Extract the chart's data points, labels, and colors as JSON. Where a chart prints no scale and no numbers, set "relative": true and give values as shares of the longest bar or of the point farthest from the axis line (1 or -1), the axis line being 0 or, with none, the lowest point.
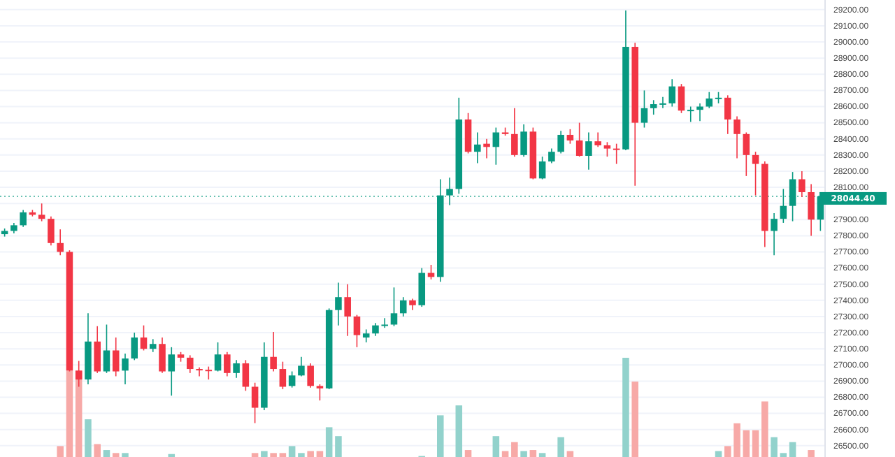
{
  "chart_data": [
    {
      "type": "candlestick",
      "categories": [
        null,
        null,
        null,
        null,
        null,
        null,
        null,
        null,
        null,
        null,
        null,
        null,
        null,
        null,
        null,
        null,
        null,
        null,
        null,
        null,
        null,
        null,
        null,
        null,
        null,
        null,
        null,
        null,
        null,
        null,
        null,
        null,
        null,
        null,
        null,
        null,
        null,
        null,
        null,
        null,
        null,
        null,
        null,
        null,
        null,
        null,
        null,
        null,
        null,
        null,
        null,
        null,
        null,
        null,
        null,
        null,
        null,
        null,
        null,
        null,
        null,
        null,
        null,
        null,
        null,
        null,
        null,
        null,
        null,
        null,
        null,
        null,
        null,
        null,
        null,
        null,
        null,
        null,
        null,
        null,
        null,
        null,
        null,
        null,
        null,
        null,
        null,
        null,
        null
      ],
      "ohlc": [
        [
          27810,
          27845,
          27795,
          27830
        ],
        [
          27830,
          27880,
          27815,
          27865
        ],
        [
          27865,
          27960,
          27855,
          27945
        ],
        [
          27945,
          27960,
          27920,
          27930
        ],
        [
          27930,
          28000,
          27890,
          27905
        ],
        [
          27905,
          27920,
          27740,
          27755
        ],
        [
          27755,
          27840,
          27680,
          27700
        ],
        [
          27700,
          27710,
          26960,
          26965
        ],
        [
          26965,
          27025,
          26865,
          26910
        ],
        [
          26910,
          27320,
          26880,
          27145
        ],
        [
          27145,
          27240,
          26950,
          26960
        ],
        [
          26960,
          27250,
          26950,
          27090
        ],
        [
          27090,
          27170,
          26930,
          26960
        ],
        [
          26965,
          27070,
          26880,
          27040
        ],
        [
          27040,
          27200,
          27030,
          27170
        ],
        [
          27170,
          27245,
          27090,
          27100
        ],
        [
          27100,
          27160,
          27080,
          27130
        ],
        [
          27130,
          27170,
          26950,
          26960
        ],
        [
          26960,
          27110,
          26810,
          27065
        ],
        [
          27065,
          27080,
          27020,
          27045
        ],
        [
          27045,
          27060,
          26950,
          26975
        ],
        [
          26975,
          26985,
          26930,
          26970
        ],
        [
          26970,
          26990,
          26910,
          26965
        ],
        [
          26965,
          27140,
          26960,
          27065
        ],
        [
          27065,
          27080,
          26930,
          26950
        ],
        [
          26950,
          27030,
          26920,
          27010
        ],
        [
          27010,
          27030,
          26840,
          26865
        ],
        [
          26865,
          26890,
          26640,
          26735
        ],
        [
          26735,
          27140,
          26720,
          27050
        ],
        [
          27050,
          27205,
          26960,
          26975
        ],
        [
          26975,
          27020,
          26850,
          26865
        ],
        [
          26870,
          26960,
          26860,
          26935
        ],
        [
          26935,
          27050,
          26930,
          26995
        ],
        [
          26995,
          27010,
          26860,
          26870
        ],
        [
          26870,
          26880,
          26780,
          26855
        ],
        [
          26855,
          27350,
          26850,
          27340
        ],
        [
          27340,
          27510,
          27245,
          27420
        ],
        [
          27420,
          27500,
          27180,
          27300
        ],
        [
          27300,
          27310,
          27110,
          27185
        ],
        [
          27170,
          27220,
          27140,
          27195
        ],
        [
          27195,
          27260,
          27180,
          27245
        ],
        [
          27245,
          27290,
          27230,
          27250
        ],
        [
          27250,
          27480,
          27240,
          27320
        ],
        [
          27320,
          27420,
          27300,
          27400
        ],
        [
          27400,
          27410,
          27340,
          27370
        ],
        [
          27370,
          27600,
          27360,
          27570
        ],
        [
          27570,
          27620,
          27530,
          27545
        ],
        [
          27545,
          28150,
          27515,
          28050
        ],
        [
          28050,
          28160,
          27990,
          28090
        ],
        [
          28090,
          28655,
          28060,
          28520
        ],
        [
          28520,
          28560,
          28310,
          28320
        ],
        [
          28320,
          28440,
          28250,
          28365
        ],
        [
          28370,
          28400,
          28280,
          28350
        ],
        [
          28350,
          28470,
          28240,
          28440
        ],
        [
          28440,
          28470,
          28420,
          28430
        ],
        [
          28430,
          28590,
          28290,
          28300
        ],
        [
          28300,
          28490,
          28290,
          28445
        ],
        [
          28445,
          28470,
          28150,
          28155
        ],
        [
          28155,
          28290,
          28150,
          28260
        ],
        [
          28260,
          28340,
          28250,
          28320
        ],
        [
          28320,
          28450,
          28310,
          28425
        ],
        [
          28425,
          28460,
          28370,
          28390
        ],
        [
          28390,
          28500,
          28290,
          28295
        ],
        [
          28295,
          28440,
          28210,
          28385
        ],
        [
          28385,
          28440,
          28350,
          28360
        ],
        [
          28360,
          28380,
          28290,
          28340
        ],
        [
          28340,
          28370,
          28245,
          28335
        ],
        [
          28335,
          29195,
          28330,
          28970
        ],
        [
          28970,
          28995,
          28110,
          28500
        ],
        [
          28500,
          28700,
          28470,
          28590
        ],
        [
          28590,
          28640,
          28550,
          28615
        ],
        [
          28615,
          28660,
          28590,
          28620
        ],
        [
          28620,
          28770,
          28600,
          28725
        ],
        [
          28725,
          28740,
          28560,
          28575
        ],
        [
          28575,
          28600,
          28505,
          28580
        ],
        [
          28580,
          28620,
          28510,
          28600
        ],
        [
          28600,
          28690,
          28590,
          28650
        ],
        [
          28650,
          28690,
          28620,
          28655
        ],
        [
          28655,
          28670,
          28430,
          28520
        ],
        [
          28520,
          28540,
          28280,
          28430
        ],
        [
          28430,
          28440,
          28170,
          28300
        ],
        [
          28300,
          28320,
          28050,
          28245
        ],
        [
          28245,
          28260,
          27730,
          27830
        ],
        [
          27830,
          27940,
          27680,
          27905
        ],
        [
          27905,
          28090,
          27880,
          27985
        ],
        [
          27985,
          28195,
          27890,
          28150
        ],
        [
          28150,
          28200,
          28040,
          28070
        ],
        [
          28070,
          28120,
          27800,
          27900
        ],
        [
          27900,
          28060,
          27830,
          28044.4
        ]
      ],
      "colors": [
        "#089981",
        "#089981",
        "#089981",
        "#f23645",
        "#f23645",
        "#f23645",
        "#f23645",
        "#f23645",
        "#f23645",
        "#089981",
        "#f23645",
        "#089981",
        "#f23645",
        "#089981",
        "#089981",
        "#f23645",
        "#089981",
        "#f23645",
        "#089981",
        "#f23645",
        "#f23645",
        "#f23645",
        "#f23645",
        "#089981",
        "#f23645",
        "#089981",
        "#f23645",
        "#f23645",
        "#089981",
        "#f23645",
        "#f23645",
        "#089981",
        "#089981",
        "#f23645",
        "#f23645",
        "#089981",
        "#089981",
        "#f23645",
        "#f23645",
        "#089981",
        "#089981",
        "#089981",
        "#089981",
        "#089981",
        "#f23645",
        "#089981",
        "#f23645",
        "#089981",
        "#089981",
        "#089981",
        "#f23645",
        "#089981",
        "#f23645",
        "#089981",
        "#f23645",
        "#f23645",
        "#089981",
        "#f23645",
        "#089981",
        "#089981",
        "#089981",
        "#f23645",
        "#f23645",
        "#089981",
        "#f23645",
        "#f23645",
        "#f23645",
        "#089981",
        "#f23645",
        "#089981",
        "#089981",
        "#089981",
        "#089981",
        "#f23645",
        "#089981",
        "#089981",
        "#089981",
        "#089981",
        "#f23645",
        "#f23645",
        "#f23645",
        "#f23645",
        "#f23645",
        "#089981",
        "#089981",
        "#089981",
        "#f23645",
        "#f23645",
        "#089981"
      ],
      "ylim": [
        26430,
        29260
      ],
      "yticks": [
        {
          "value": 26500,
          "label": "26500.00"
        },
        {
          "value": 26600,
          "label": "26600.00"
        },
        {
          "value": 26700,
          "label": "26700.00"
        },
        {
          "value": 26800,
          "label": "26800.00"
        },
        {
          "value": 26900,
          "label": "26900.00"
        },
        {
          "value": 27000,
          "label": "27000.00"
        },
        {
          "value": 27100,
          "label": "27100.00"
        },
        {
          "value": 27200,
          "label": "27200.00"
        },
        {
          "value": 27300,
          "label": "27300.00"
        },
        {
          "value": 27400,
          "label": "27400.00"
        },
        {
          "value": 27500,
          "label": "27500.00"
        },
        {
          "value": 27600,
          "label": "27600.00"
        },
        {
          "value": 27700,
          "label": "27700.00"
        },
        {
          "value": 27800,
          "label": "27800.00"
        },
        {
          "value": 27900,
          "label": "27900.00"
        },
        {
          "value": 28000,
          "label": null
        },
        {
          "value": 28100,
          "label": "28100.00"
        },
        {
          "value": 28200,
          "label": "28200.00"
        },
        {
          "value": 28300,
          "label": "28300.00"
        },
        {
          "value": 28400,
          "label": "28400.00"
        },
        {
          "value": 28500,
          "label": "28500.00"
        },
        {
          "value": 28600,
          "label": "28600.00"
        },
        {
          "value": 28700,
          "label": "28700.00"
        },
        {
          "value": 28800,
          "label": "28800.00"
        },
        {
          "value": 28900,
          "label": "28900.00"
        },
        {
          "value": 29000,
          "label": "29000.00"
        },
        {
          "value": 29100,
          "label": "29100.00"
        },
        {
          "value": 29200,
          "label": "29200.00"
        }
      ],
      "grid": "y",
      "ref_lines": [
        {
          "axis": "y",
          "value": 28044.4,
          "label": "28044.40",
          "color": "#089981",
          "line_style": "dotted"
        }
      ]
    },
    {
      "type": "bar",
      "relative": true,
      "categories": [
        null,
        null,
        null,
        null,
        null,
        null,
        null,
        null,
        null,
        null,
        null,
        null,
        null,
        null,
        null,
        null,
        null,
        null,
        null,
        null,
        null,
        null,
        null,
        null,
        null,
        null,
        null,
        null,
        null,
        null,
        null,
        null,
        null,
        null,
        null,
        null,
        null,
        null,
        null,
        null,
        null,
        null,
        null,
        null,
        null,
        null,
        null,
        null,
        null,
        null,
        null,
        null,
        null,
        null,
        null,
        null,
        null,
        null,
        null,
        null,
        null,
        null,
        null,
        null,
        null,
        null,
        null,
        null,
        null,
        null,
        null,
        null,
        null,
        null,
        null,
        null,
        null,
        null,
        null,
        null,
        null,
        null,
        null,
        null,
        null,
        null,
        null,
        null,
        null
      ],
      "values": [
        0,
        0,
        0,
        0,
        0,
        0,
        0.11,
        0.87,
        0.87,
        0.38,
        0.13,
        0.07,
        0.04,
        0.04,
        0,
        0,
        0,
        0,
        0.03,
        0,
        0,
        0,
        0,
        0,
        0,
        0,
        0,
        0.04,
        0.06,
        0.04,
        0.04,
        0.11,
        0.04,
        0.06,
        0.06,
        0.3,
        0.21,
        0,
        0,
        0,
        0,
        0,
        0,
        0,
        0,
        0.01,
        0,
        0.42,
        0,
        0.52,
        0.07,
        0,
        0,
        0.21,
        0.06,
        0.15,
        0.06,
        0.07,
        0.04,
        0,
        0.2,
        0.06,
        0,
        0,
        0,
        0,
        0,
        1,
        0.76,
        0,
        0,
        0,
        0,
        0,
        0,
        0,
        0,
        0.06,
        0.11,
        0.34,
        0.27,
        0.27,
        0.56,
        0.2,
        0.04,
        0.15,
        0,
        0.07,
        0
      ],
      "colors": [
        "#92d2cc",
        "#92d2cc",
        "#92d2cc",
        "#f7a9a7",
        "#f7a9a7",
        "#f7a9a7",
        "#f7a9a7",
        "#f7a9a7",
        "#f7a9a7",
        "#92d2cc",
        "#f7a9a7",
        "#92d2cc",
        "#f7a9a7",
        "#92d2cc",
        "#92d2cc",
        "#f7a9a7",
        "#92d2cc",
        "#f7a9a7",
        "#92d2cc",
        "#f7a9a7",
        "#f7a9a7",
        "#f7a9a7",
        "#f7a9a7",
        "#92d2cc",
        "#f7a9a7",
        "#92d2cc",
        "#f7a9a7",
        "#f7a9a7",
        "#92d2cc",
        "#f7a9a7",
        "#f7a9a7",
        "#92d2cc",
        "#92d2cc",
        "#f7a9a7",
        "#f7a9a7",
        "#92d2cc",
        "#92d2cc",
        "#f7a9a7",
        "#f7a9a7",
        "#92d2cc",
        "#92d2cc",
        "#92d2cc",
        "#92d2cc",
        "#92d2cc",
        "#f7a9a7",
        "#92d2cc",
        "#f7a9a7",
        "#92d2cc",
        "#92d2cc",
        "#92d2cc",
        "#f7a9a7",
        "#92d2cc",
        "#f7a9a7",
        "#92d2cc",
        "#f7a9a7",
        "#f7a9a7",
        "#92d2cc",
        "#f7a9a7",
        "#92d2cc",
        "#92d2cc",
        "#92d2cc",
        "#f7a9a7",
        "#f7a9a7",
        "#92d2cc",
        "#f7a9a7",
        "#f7a9a7",
        "#f7a9a7",
        "#92d2cc",
        "#f7a9a7",
        "#92d2cc",
        "#92d2cc",
        "#92d2cc",
        "#92d2cc",
        "#f7a9a7",
        "#92d2cc",
        "#92d2cc",
        "#92d2cc",
        "#92d2cc",
        "#f7a9a7",
        "#f7a9a7",
        "#f7a9a7",
        "#f7a9a7",
        "#f7a9a7",
        "#92d2cc",
        "#92d2cc",
        "#92d2cc",
        "#f7a9a7",
        "#f7a9a7",
        "#92d2cc"
      ]
    }
  ]
}
